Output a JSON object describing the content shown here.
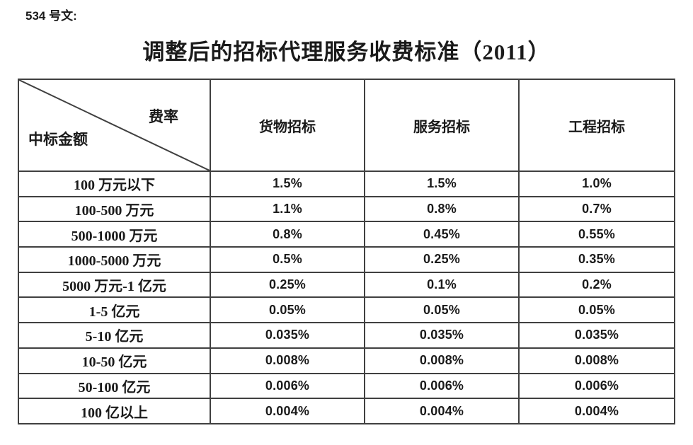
{
  "doc_ref": "534 号文:",
  "title": "调整后的招标代理服务收费标准（2011）",
  "table": {
    "corner": {
      "top_right": "费率",
      "bottom_left": "中标金额"
    },
    "columns": [
      "货物招标",
      "服务招标",
      "工程招标"
    ],
    "rows": [
      {
        "label": "100 万元以下",
        "values": [
          "1.5%",
          "1.5%",
          "1.0%"
        ]
      },
      {
        "label": "100-500 万元",
        "values": [
          "1.1%",
          "0.8%",
          "0.7%"
        ]
      },
      {
        "label": "500-1000 万元",
        "values": [
          "0.8%",
          "0.45%",
          "0.55%"
        ]
      },
      {
        "label": "1000-5000 万元",
        "values": [
          "0.5%",
          "0.25%",
          "0.35%"
        ]
      },
      {
        "label": "5000 万元-1 亿元",
        "values": [
          "0.25%",
          "0.1%",
          "0.2%"
        ]
      },
      {
        "label": "1-5 亿元",
        "values": [
          "0.05%",
          "0.05%",
          "0.05%"
        ]
      },
      {
        "label": "5-10 亿元",
        "values": [
          "0.035%",
          "0.035%",
          "0.035%"
        ]
      },
      {
        "label": "10-50 亿元",
        "values": [
          "0.008%",
          "0.008%",
          "0.008%"
        ]
      },
      {
        "label": "50-100 亿元",
        "values": [
          "0.006%",
          "0.006%",
          "0.006%"
        ]
      },
      {
        "label": "100 亿以上",
        "values": [
          "0.004%",
          "0.004%",
          "0.004%"
        ]
      }
    ]
  },
  "colors": {
    "text": "#1a1a1a",
    "border": "#404040",
    "background": "#ffffff"
  }
}
